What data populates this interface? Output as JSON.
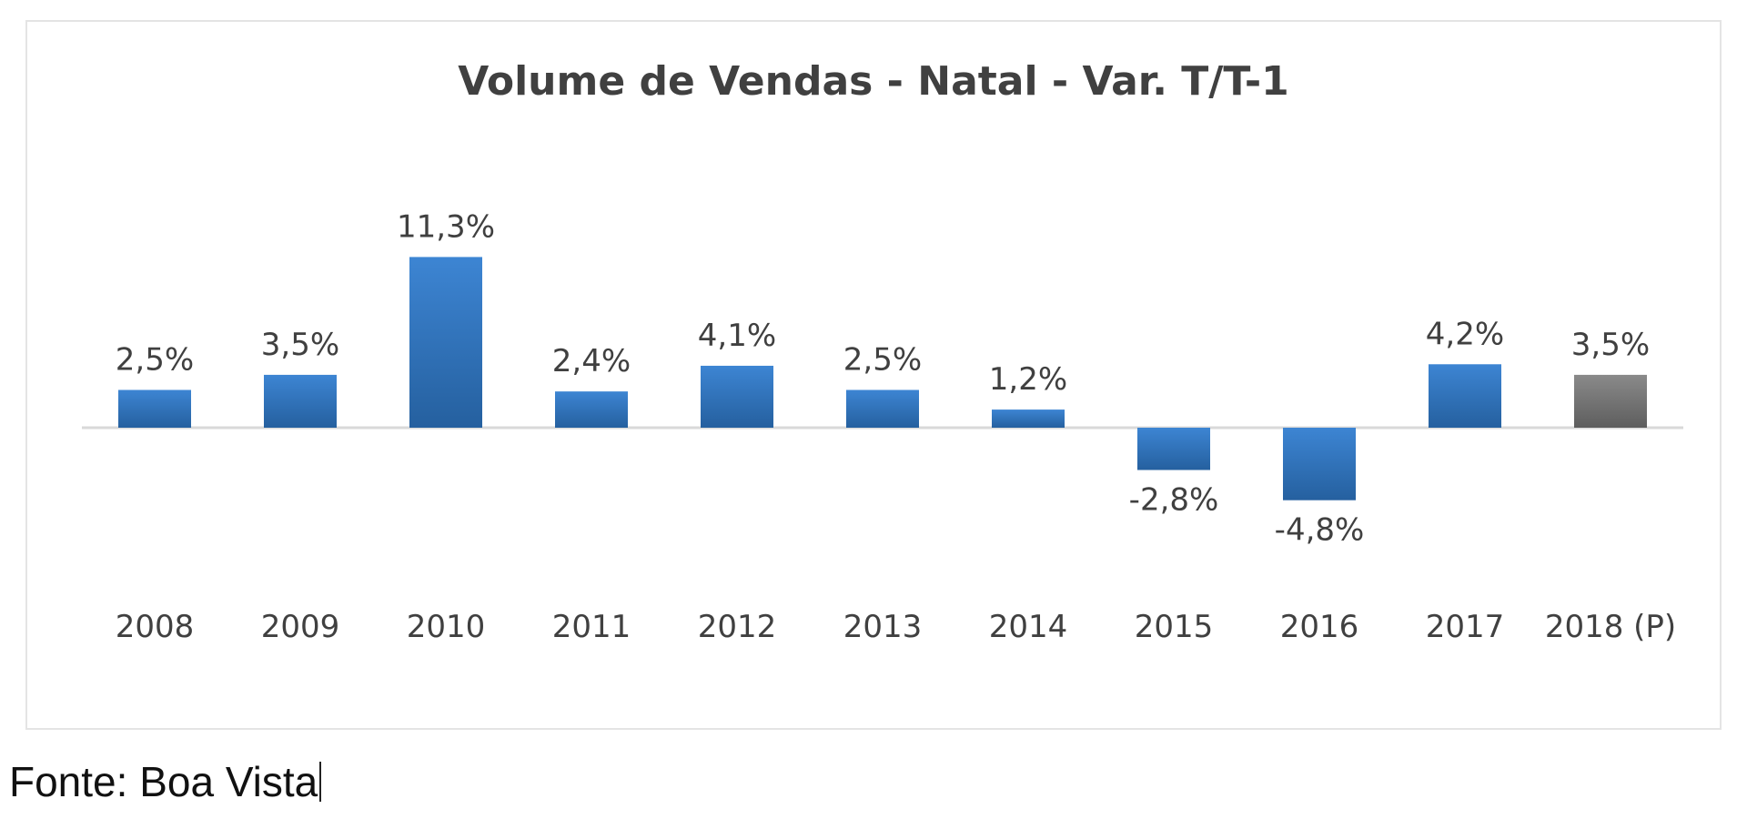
{
  "chart_data": {
    "type": "bar",
    "title": "Volume de Vendas - Natal - Var. T/T-1",
    "categories": [
      "2008",
      "2009",
      "2010",
      "2011",
      "2012",
      "2013",
      "2014",
      "2015",
      "2016",
      "2017",
      "2018 (P)"
    ],
    "values": [
      2.5,
      3.5,
      11.3,
      2.4,
      4.1,
      2.5,
      1.2,
      -2.8,
      -4.8,
      4.2,
      3.5
    ],
    "value_labels": [
      "2,5%",
      "3,5%",
      "11,3%",
      "2,4%",
      "4,1%",
      "2,5%",
      "1,2%",
      "-2,8%",
      "-4,8%",
      "4,2%",
      "3,5%"
    ],
    "unit": "%",
    "ylim": [
      -6,
      12
    ],
    "grid": false,
    "legend": "none",
    "colors": {
      "actual": "#3d85d3",
      "actual_dark": "#25609f",
      "projection": "#8a8a8a",
      "projection_dark": "#5e5e5e",
      "baseline": "#d9d9d9"
    }
  },
  "footer": {
    "source": "Fonte: Boa Vista"
  }
}
